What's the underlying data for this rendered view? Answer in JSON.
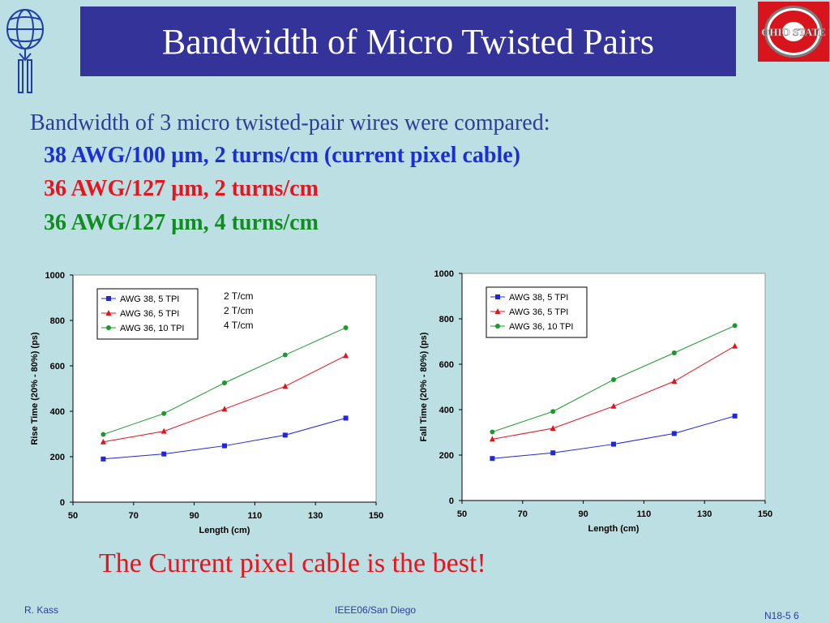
{
  "title": "Bandwidth of Micro Twisted Pairs",
  "intro": "Bandwidth of 3 micro twisted-pair wires were compared:",
  "wires": [
    "38 AWG/100 µm, 2 turns/cm (current pixel cable)",
    "36 AWG/127 µm, 2 turns/cm",
    "36 AWG/127 µm, 4 turns/cm"
  ],
  "conclusion": "The Current pixel cable is the best!",
  "footer": {
    "author": "R. Kass",
    "conference": "IEEE06/San Diego",
    "slide": "N18-5 6"
  },
  "logo_text": "OHIO STATE",
  "annotation_lines": [
    "2 T/cm",
    "2 T/cm",
    "4 T/cm"
  ],
  "colors": {
    "blue": "#1f27d6",
    "red": "#e0141d",
    "green": "#199a2a"
  },
  "chart_data": [
    {
      "type": "line",
      "xlabel": "Length (cm)",
      "ylabel": "Rise Time (20% - 80%) (ps)",
      "xlim": [
        50,
        150
      ],
      "ylim": [
        0,
        1000
      ],
      "xticks": [
        "50",
        "70",
        "90",
        "110",
        "130",
        "150"
      ],
      "yticks": [
        "0",
        "200",
        "400",
        "600",
        "800",
        "1000"
      ],
      "x": [
        60,
        80,
        100,
        120,
        140
      ],
      "legend_position": "top-left",
      "series": [
        {
          "name": "AWG 38, 5 TPI",
          "marker": "square",
          "color": "#1f27d6",
          "values": [
            190,
            212,
            248,
            295,
            370
          ]
        },
        {
          "name": "AWG 36, 5 TPI",
          "marker": "triangle",
          "color": "#e0141d",
          "values": [
            265,
            312,
            410,
            510,
            645
          ]
        },
        {
          "name": "AWG 36, 10 TPI",
          "marker": "circle",
          "color": "#199a2a",
          "values": [
            298,
            390,
            525,
            648,
            768
          ]
        }
      ]
    },
    {
      "type": "line",
      "xlabel": "Length (cm)",
      "ylabel": "Fall Time (20% - 80%) (ps)",
      "xlim": [
        50,
        150
      ],
      "ylim": [
        0,
        1000
      ],
      "xticks": [
        "50",
        "70",
        "90",
        "110",
        "130",
        "150"
      ],
      "yticks": [
        "0",
        "200",
        "400",
        "600",
        "800",
        "1000"
      ],
      "x": [
        60,
        80,
        100,
        120,
        140
      ],
      "legend_position": "top-left",
      "series": [
        {
          "name": "AWG 38, 5 TPI",
          "marker": "square",
          "color": "#1f27d6",
          "values": [
            185,
            210,
            248,
            295,
            372
          ]
        },
        {
          "name": "AWG 36, 5 TPI",
          "marker": "triangle",
          "color": "#e0141d",
          "values": [
            270,
            318,
            415,
            525,
            680
          ]
        },
        {
          "name": "AWG 36, 10 TPI",
          "marker": "circle",
          "color": "#199a2a",
          "values": [
            302,
            392,
            532,
            650,
            770
          ]
        }
      ]
    }
  ]
}
